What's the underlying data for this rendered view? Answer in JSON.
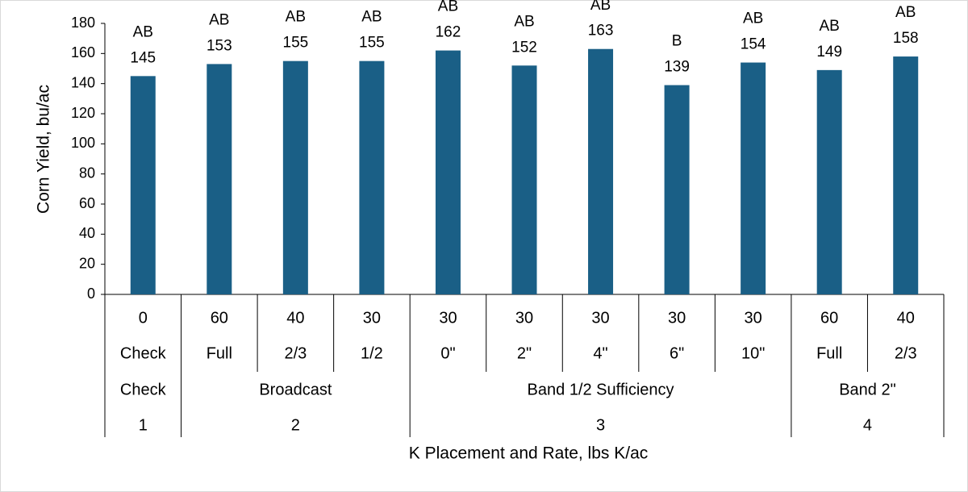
{
  "chart_data": {
    "type": "bar",
    "xlabel": "K Placement and Rate, lbs K/ac",
    "ylabel": "Corn Yield, bu/ac",
    "ylim": [
      0,
      180
    ],
    "yticks": [
      0,
      20,
      40,
      60,
      80,
      100,
      120,
      140,
      160,
      180
    ],
    "grid": false,
    "bar_color": "#1a5f86",
    "categories": [
      {
        "rate": "0",
        "detail": "Check"
      },
      {
        "rate": "60",
        "detail": "Full"
      },
      {
        "rate": "40",
        "detail": "2/3"
      },
      {
        "rate": "30",
        "detail": "1/2"
      },
      {
        "rate": "30",
        "detail": "0\""
      },
      {
        "rate": "30",
        "detail": "2\""
      },
      {
        "rate": "30",
        "detail": "4\""
      },
      {
        "rate": "30",
        "detail": "6\""
      },
      {
        "rate": "30",
        "detail": "10\""
      },
      {
        "rate": "60",
        "detail": "Full"
      },
      {
        "rate": "40",
        "detail": "2/3"
      }
    ],
    "values": [
      145,
      153,
      155,
      155,
      162,
      152,
      163,
      139,
      154,
      149,
      158
    ],
    "letters": [
      "AB",
      "AB",
      "AB",
      "AB",
      "AB",
      "AB",
      "AB",
      "B",
      "AB",
      "AB",
      "AB"
    ],
    "groups": [
      {
        "placement": "Check",
        "number": "1",
        "count": 1
      },
      {
        "placement": "Broadcast",
        "number": "2",
        "count": 3
      },
      {
        "placement": "Band 1/2 Sufficiency",
        "number": "3",
        "count": 5
      },
      {
        "placement": "Band 2\"",
        "number": "4",
        "count": 2
      }
    ]
  }
}
